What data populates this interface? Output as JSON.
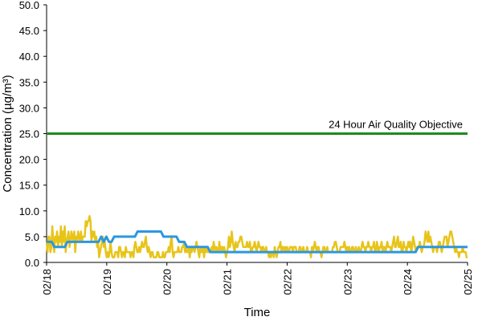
{
  "chart_data": {
    "type": "line",
    "xlabel": "Time",
    "ylabel": "Concentration (µg/m³)",
    "ylim": [
      0,
      50
    ],
    "yticks": [
      "0.0",
      "5.0",
      "10.0",
      "15.0",
      "20.0",
      "25.0",
      "30.0",
      "35.0",
      "40.0",
      "45.0",
      "50.0"
    ],
    "xticks": [
      "02/18",
      "02/19",
      "02/20",
      "02/21",
      "02/22",
      "02/23",
      "02/24",
      "02/25"
    ],
    "grid": false,
    "objective": {
      "label": "24 Hour Air Quality Objective",
      "value": 25,
      "color": "#1e8a1e"
    },
    "series": [
      {
        "color": "#e8c41a",
        "values": [
          4,
          2,
          5,
          5,
          2,
          3,
          7,
          4,
          2,
          5,
          4,
          6,
          3,
          5,
          4,
          7,
          3,
          6,
          4,
          7,
          2,
          4,
          5,
          6,
          3,
          4,
          6,
          5,
          4,
          6,
          2,
          5,
          4,
          6,
          5,
          4,
          6,
          4,
          5,
          5,
          5,
          8,
          7,
          8,
          8,
          9,
          8,
          4,
          6,
          5,
          6,
          4,
          5,
          3,
          4,
          1,
          2,
          3,
          4,
          5,
          3,
          4,
          2,
          1,
          2,
          1,
          2,
          4,
          2,
          1,
          1,
          1,
          2,
          2,
          2,
          1,
          3,
          3,
          2,
          1,
          2,
          2,
          1,
          3,
          2,
          2,
          2,
          2,
          1,
          2,
          2,
          1,
          3,
          4,
          3,
          2,
          2,
          3,
          2,
          3,
          4,
          3,
          3,
          4,
          5,
          3,
          2,
          3,
          2,
          1,
          2,
          2,
          1,
          1,
          1,
          1,
          2,
          2,
          1,
          1,
          1,
          1,
          2,
          1,
          1,
          2,
          2,
          2,
          3,
          2,
          4,
          5,
          2,
          1,
          2,
          2,
          2,
          2,
          3,
          2,
          2,
          2,
          3,
          3,
          4,
          2,
          3,
          2,
          2,
          3,
          1,
          3,
          2,
          3,
          3,
          2,
          3,
          4,
          3,
          2,
          1,
          3,
          2,
          2,
          3,
          1,
          3,
          2,
          3,
          2,
          2,
          2,
          2,
          3,
          2,
          4,
          3,
          2,
          3,
          2,
          2,
          4,
          2,
          3,
          3,
          2,
          3,
          2,
          1,
          2,
          3,
          5,
          3,
          4,
          6,
          4,
          3,
          2,
          4,
          3,
          3,
          4,
          4,
          5,
          5,
          4,
          3,
          3,
          3,
          3,
          4,
          3,
          3,
          4,
          2,
          2,
          3,
          3,
          4,
          3,
          2,
          3,
          4,
          3,
          3,
          2,
          3,
          3,
          2,
          2,
          3,
          2,
          2,
          1,
          2,
          1,
          2,
          2,
          1,
          3,
          2,
          1,
          2,
          3,
          3,
          4,
          2,
          3,
          3,
          2,
          3,
          2,
          3,
          2,
          2,
          3,
          3,
          3,
          2,
          3,
          3,
          3,
          2,
          2,
          2,
          3,
          3,
          2,
          2,
          3,
          2,
          2,
          2,
          3,
          2,
          2,
          2,
          1,
          3,
          2,
          3,
          4,
          3,
          2,
          3,
          3,
          2,
          2,
          1,
          2,
          3,
          3,
          2,
          2,
          3,
          2,
          2,
          2,
          2,
          2,
          3,
          3,
          4,
          4,
          3,
          2,
          2,
          2,
          3,
          3,
          3,
          3,
          4,
          3,
          2,
          3,
          2,
          3,
          2,
          2,
          3,
          3,
          2,
          2,
          3,
          2,
          2,
          3,
          2,
          2,
          3,
          4,
          3,
          3,
          2,
          3,
          3,
          4,
          3,
          3,
          2,
          3,
          3,
          4,
          2,
          2,
          4,
          3,
          2,
          3,
          3,
          4,
          2,
          3,
          3,
          2,
          3,
          4,
          3,
          3,
          3,
          2,
          3,
          4,
          5,
          3,
          3,
          4,
          5,
          3,
          3,
          4,
          2,
          2,
          4,
          3,
          3,
          2,
          3,
          4,
          3,
          4,
          2,
          3,
          5,
          4,
          3,
          2,
          3,
          3,
          3,
          4,
          3,
          2,
          3,
          3,
          4,
          6,
          5,
          4,
          6,
          4,
          5,
          4,
          3,
          2,
          3,
          3,
          3,
          2,
          3,
          4,
          4,
          3,
          2,
          3,
          4,
          5,
          5,
          5,
          3,
          4,
          5,
          6,
          6,
          5,
          4,
          3,
          2,
          3,
          2,
          2,
          1,
          2,
          2,
          2,
          3,
          2,
          2,
          2,
          1,
          1
        ]
      },
      {
        "color": "#2b97e0",
        "values": [
          4,
          4,
          4,
          3,
          3,
          3,
          3,
          3,
          4,
          4,
          4,
          4,
          4,
          4,
          4,
          4,
          4,
          4,
          4,
          4,
          4,
          5,
          4,
          5,
          4,
          4,
          5,
          5,
          5,
          5,
          5,
          5,
          5,
          5,
          5,
          6,
          6,
          6,
          6,
          6,
          6,
          6,
          6,
          6,
          6,
          5,
          5,
          5,
          5,
          5,
          5,
          4,
          4,
          4,
          3,
          3,
          3,
          3,
          3,
          3,
          3,
          3,
          3,
          2,
          2,
          2,
          2,
          2,
          2,
          2,
          2,
          2,
          2,
          2,
          2,
          2,
          2,
          2,
          2,
          2,
          2,
          2,
          2,
          2,
          2,
          2,
          2,
          2,
          2,
          2,
          2,
          2,
          2,
          2,
          2,
          2,
          2,
          2,
          2,
          2,
          2,
          2,
          2,
          2,
          2,
          2,
          2,
          2,
          2,
          2,
          2,
          2,
          2,
          2,
          2,
          2,
          2,
          2,
          2,
          2,
          2,
          2,
          2,
          2,
          2,
          2,
          2,
          2,
          2,
          2,
          2,
          2,
          2,
          2,
          2,
          2,
          2,
          2,
          2,
          2,
          2,
          2,
          2,
          3,
          3,
          3,
          3,
          3,
          3,
          3,
          3,
          3,
          3,
          3,
          3,
          3,
          3,
          3,
          3,
          3,
          3,
          3,
          3
        ]
      }
    ]
  }
}
